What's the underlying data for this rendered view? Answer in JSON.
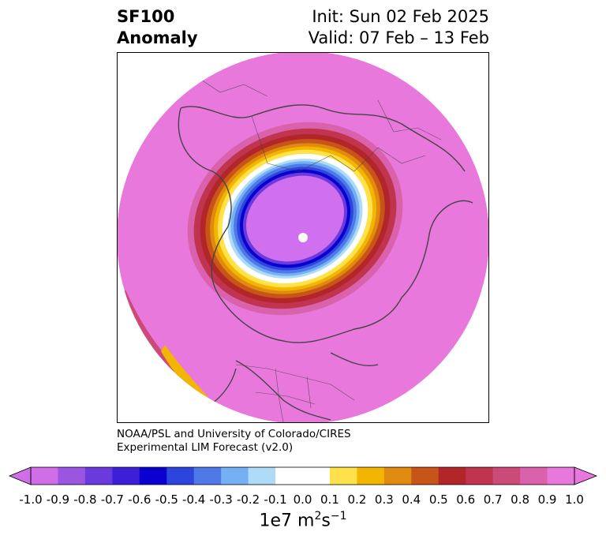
{
  "title": {
    "left_line1": "SF100",
    "left_line2": "Anomaly",
    "right_line1": "Init: Sun 02 Feb 2025",
    "right_line2": "Valid: 07 Feb – 13 Feb"
  },
  "credit": {
    "line1": "NOAA/PSL and University of Colorado/CIRES",
    "line2": "Experimental LIM Forecast (v2.0)"
  },
  "colorbar": {
    "units_base": "1e7 m",
    "units_exp1": "2",
    "units_mid": "s",
    "units_exp2": "−1",
    "tick_labels": [
      "-1.0",
      "-0.9",
      "-0.8",
      "-0.7",
      "-0.6",
      "-0.5",
      "-0.4",
      "-0.3",
      "-0.2",
      "-0.1",
      "0.0",
      "0.1",
      "0.2",
      "0.3",
      "0.4",
      "0.5",
      "0.6",
      "0.7",
      "0.8",
      "0.9",
      "1.0"
    ],
    "colors": [
      "#d06ee8",
      "#9b55e0",
      "#6a3adc",
      "#3c1fd6",
      "#0a00cf",
      "#2c45dc",
      "#4f78e8",
      "#76b0f4",
      "#aedcf8",
      "#ffffff",
      "#ffffff",
      "#ffe24a",
      "#f2b600",
      "#e08a10",
      "#c85518",
      "#b2262a",
      "#c03450",
      "#cc4a78",
      "#da62ac",
      "#e878dc"
    ]
  },
  "map": {
    "projection": "north-polar-stereographic",
    "background_field_color": "#e878dc",
    "negative_anomaly_color": "#d070ee",
    "coastline_color": "#444444"
  }
}
